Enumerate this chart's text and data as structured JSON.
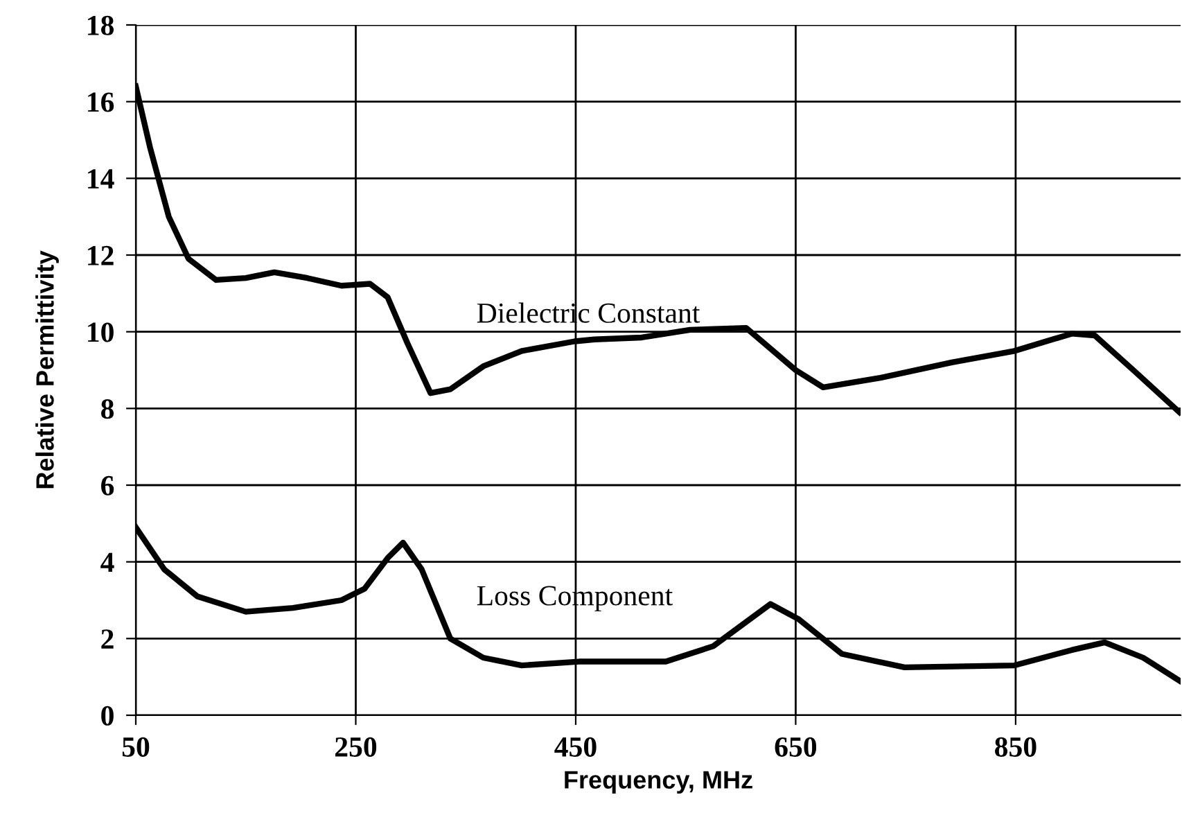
{
  "chart_data": {
    "type": "line",
    "xlabel": "Frequency, MHz",
    "ylabel": "Relative Permittivity",
    "xlim": [
      50,
      1000
    ],
    "xticks": [
      50,
      250,
      450,
      650,
      850
    ],
    "ylim": [
      0,
      18
    ],
    "yticks": [
      0,
      2,
      4,
      6,
      8,
      10,
      12,
      14,
      16,
      18
    ],
    "grid": true,
    "legend": false,
    "marker": "none",
    "line_style": "solid",
    "series": [
      {
        "name": "Dielectric Constant",
        "color": "#000000",
        "x": [
          50,
          63,
          80,
          98,
          123,
          150,
          176,
          206,
          237,
          263,
          279,
          297,
          318,
          336,
          366,
          401,
          449,
          467,
          510,
          554,
          605,
          650,
          675,
          727,
          792,
          849,
          901,
          922,
          957,
          999
        ],
        "values": [
          16.4,
          14.8,
          13.0,
          11.9,
          11.35,
          11.4,
          11.55,
          11.4,
          11.2,
          11.25,
          10.9,
          9.7,
          8.4,
          8.5,
          9.1,
          9.5,
          9.75,
          9.8,
          9.85,
          10.05,
          10.1,
          9.0,
          8.55,
          8.8,
          9.2,
          9.5,
          9.95,
          9.9,
          9.0,
          7.9
        ]
      },
      {
        "name": "Loss Component",
        "color": "#000000",
        "x": [
          50,
          76,
          106,
          150,
          193,
          237,
          258,
          279,
          293,
          310,
          336,
          366,
          401,
          453,
          532,
          575,
          627,
          653,
          692,
          749,
          849,
          901,
          931,
          966,
          999
        ],
        "values": [
          4.9,
          3.8,
          3.1,
          2.7,
          2.8,
          3.0,
          3.3,
          4.1,
          4.5,
          3.8,
          2.0,
          1.5,
          1.3,
          1.4,
          1.4,
          1.8,
          2.9,
          2.5,
          1.6,
          1.25,
          1.3,
          1.7,
          1.9,
          1.5,
          0.9
        ]
      }
    ]
  }
}
